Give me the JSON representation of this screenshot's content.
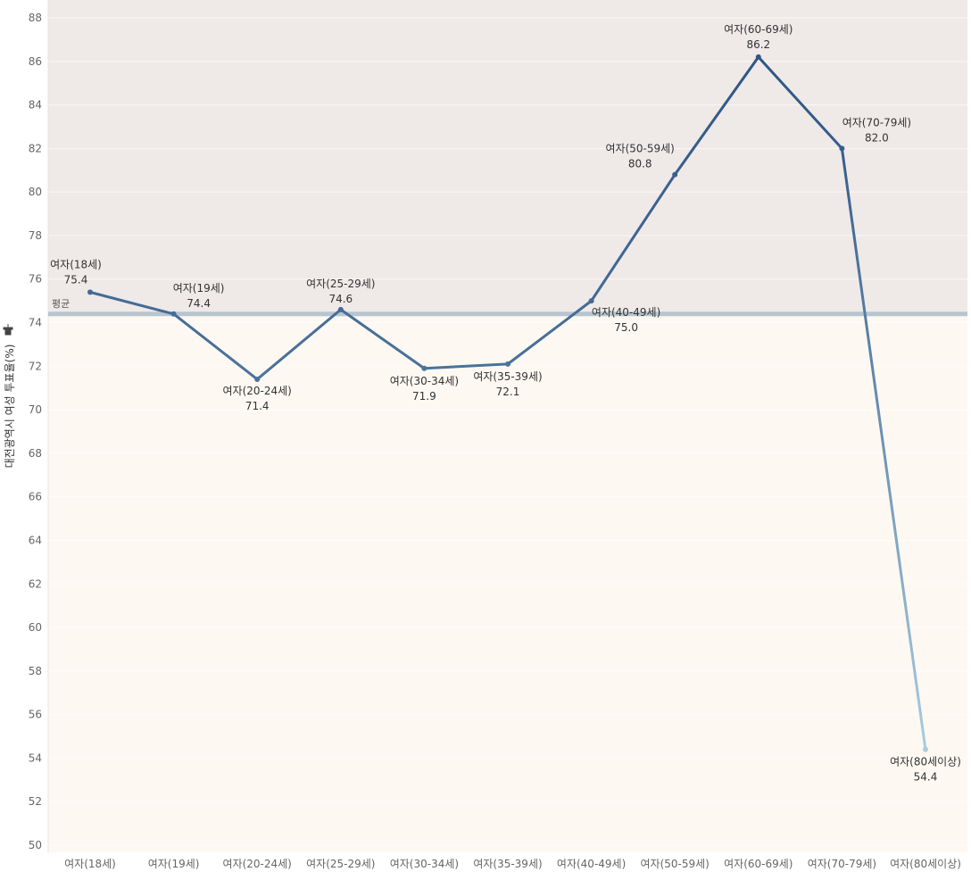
{
  "chart_data": {
    "type": "line",
    "title": "",
    "ylabel": "대전광역시 여성 투표율(%)",
    "xlabel": "",
    "ylim": [
      50,
      88
    ],
    "yticks": [
      50,
      52,
      54,
      56,
      58,
      60,
      62,
      64,
      66,
      68,
      70,
      72,
      74,
      76,
      78,
      80,
      82,
      84,
      86,
      88
    ],
    "categories": [
      "여자(18세)",
      "여자(19세)",
      "여자(20-24세)",
      "여자(25-29세)",
      "여자(30-34세)",
      "여자(35-39세)",
      "여자(40-49세)",
      "여자(50-59세)",
      "여자(60-69세)",
      "여자(70-79세)",
      "여자(80세이상)"
    ],
    "series": [
      {
        "values": [
          75.4,
          74.4,
          71.4,
          74.6,
          71.9,
          72.1,
          75.0,
          80.8,
          86.2,
          82.0,
          54.4
        ]
      }
    ],
    "data_labels": [
      "75.4",
      "74.4",
      "71.4",
      "74.6",
      "71.9",
      "72.1",
      "75.0",
      "80.8",
      "86.2",
      "82.0",
      "54.4"
    ],
    "reference_line": {
      "label": "평균",
      "value": 74.4,
      "color": "#b8c4d0"
    },
    "band_colors": {
      "above": "#efe9e8",
      "below": "#fdf8f1"
    },
    "color_range": {
      "low": "#a8cce0",
      "high": "#2e5686"
    },
    "pin_icon": "pin-icon",
    "grid": true
  }
}
